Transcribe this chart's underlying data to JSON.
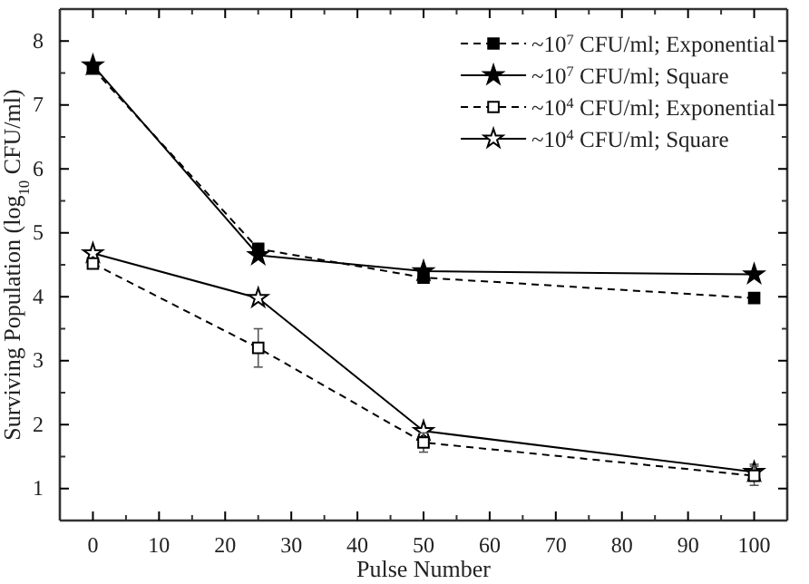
{
  "chart_data": {
    "type": "line",
    "xlabel": "Pulse Number",
    "ylabel": "Surviving Population (log$_{10}$ CFU/ml)",
    "x": [
      0,
      25,
      50,
      100
    ],
    "xlim": [
      -5,
      105
    ],
    "xticks": [
      0,
      10,
      20,
      30,
      40,
      50,
      60,
      70,
      80,
      90,
      100
    ],
    "ylim": [
      0.5,
      8.5
    ],
    "yticks": [
      1,
      2,
      3,
      4,
      5,
      6,
      7,
      8
    ],
    "grid": false,
    "legend": "top right",
    "series": [
      {
        "name": "~10$^{7}$ CFU/ml; Exponential",
        "color": "#000000",
        "marker": "square",
        "line_style": "dashed",
        "values": [
          7.57,
          4.75,
          4.3,
          3.98
        ]
      },
      {
        "name": "~10$^{7}$ CFU/ml; Square",
        "color": "#000000",
        "marker": "star",
        "line_style": "solid",
        "values": [
          7.62,
          4.65,
          4.4,
          4.35
        ]
      },
      {
        "name": "~10$^{4}$ CFU/ml; Exponential",
        "color": "#000000",
        "colors": [
          "#ffffff",
          "#ffffff",
          "#ffffff",
          "#ffffff"
        ],
        "marker": "square",
        "line_style": "dashed",
        "values": [
          4.52,
          3.2,
          1.72,
          1.2
        ],
        "errors": [
          null,
          0.3,
          0.15,
          0.15
        ]
      },
      {
        "name": "~10$^{4}$ CFU/ml; Square",
        "color": "#000000",
        "colors": [
          "#ffffff",
          "#ffffff",
          "#ffffff",
          "#ffffff"
        ],
        "marker": "star",
        "line_style": "solid",
        "values": [
          4.68,
          3.98,
          1.9,
          1.26
        ],
        "errors": [
          null,
          null,
          null,
          0.12
        ]
      }
    ]
  }
}
